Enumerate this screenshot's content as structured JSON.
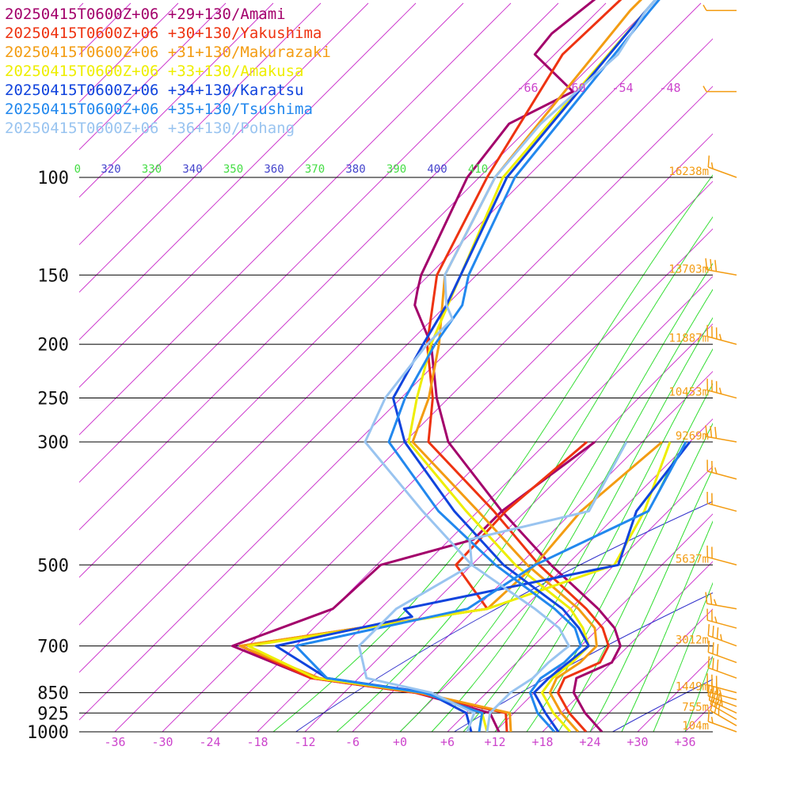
{
  "chart_data": {
    "type": "line",
    "title": "",
    "xlabel": "",
    "ylabel": "",
    "x_scale": "skewed temperature (deg C)",
    "y_scale": "log pressure (hPa)",
    "xlim": [
      -40,
      40
    ],
    "ylim": [
      1000,
      100
    ],
    "grid": true,
    "legend_position": "top-left",
    "pressure_ticks": [
      "100",
      "150",
      "200",
      "250",
      "300",
      "500",
      "700",
      "850",
      "925",
      "1000"
    ],
    "temperature_ticks": [
      "-36",
      "-30",
      "-24",
      "-18",
      "-12",
      "-6",
      "+0",
      "+6",
      "+12",
      "+18",
      "+24",
      "+30",
      "+36"
    ],
    "upper_isotherm_labels": [
      "-66",
      "-60",
      "-54",
      "-48"
    ],
    "theta_labels": [
      {
        "text": "0",
        "color": "#44dd44"
      },
      {
        "text": "320",
        "color": "#4444cc"
      },
      {
        "text": "330",
        "color": "#44dd44"
      },
      {
        "text": "340",
        "color": "#4444cc"
      },
      {
        "text": "350",
        "color": "#44dd44"
      },
      {
        "text": "360",
        "color": "#4444cc"
      },
      {
        "text": "370",
        "color": "#44dd44"
      },
      {
        "text": "380",
        "color": "#4444cc"
      },
      {
        "text": "390",
        "color": "#44dd44"
      },
      {
        "text": "400",
        "color": "#4444cc"
      },
      {
        "text": "410",
        "color": "#44dd44"
      }
    ],
    "height_labels": [
      {
        "p": 100,
        "text": "16238m"
      },
      {
        "p": 150,
        "text": "13703m"
      },
      {
        "p": 200,
        "text": "11887m"
      },
      {
        "p": 250,
        "text": "10453m"
      },
      {
        "p": 300,
        "text": "9269m"
      },
      {
        "p": 500,
        "text": "5637m"
      },
      {
        "p": 700,
        "text": "3012m"
      },
      {
        "p": 850,
        "text": "1449m"
      },
      {
        "p": 925,
        "text": "755m"
      },
      {
        "p": 1000,
        "text": "104m"
      }
    ],
    "colors": {
      "isobar": "#000000",
      "isotherm": "#cc33cc",
      "dry_adiabat": "#3333cc",
      "moist_adiabat": "#33dd33",
      "height_label": "#f39c12",
      "wind_barb": "#f39c12"
    },
    "series": [
      {
        "name": "20250415T0600Z+06 +29+130/Amami",
        "color": "#a3006b",
        "temperature": [
          [
            1000,
            25.5
          ],
          [
            925,
            21
          ],
          [
            850,
            17
          ],
          [
            800,
            15.5
          ],
          [
            750,
            18
          ],
          [
            700,
            17
          ],
          [
            650,
            14
          ],
          [
            600,
            9.5
          ],
          [
            500,
            -2
          ],
          [
            400,
            -15
          ],
          [
            300,
            -30.5
          ],
          [
            250,
            -37.5
          ],
          [
            200,
            -45
          ],
          [
            170,
            -52
          ],
          [
            160,
            -53.5
          ],
          [
            150,
            -55
          ],
          [
            100,
            -61.5
          ],
          [
            80,
            -63
          ],
          [
            70,
            -59
          ],
          [
            60,
            -68.5
          ],
          [
            55,
            -69
          ],
          [
            40,
            -66.5
          ],
          [
            20,
            -64
          ]
        ],
        "dewpoint": [
          [
            1000,
            12.5
          ],
          [
            925,
            9
          ],
          [
            850,
            -3
          ],
          [
            800,
            -18
          ],
          [
            700,
            -32
          ],
          [
            600,
            -24
          ],
          [
            500,
            -23.5
          ],
          [
            450,
            -15
          ],
          [
            400,
            -15
          ],
          [
            300,
            -12
          ]
        ]
      },
      {
        "name": "20250415T0600Z+06 +30+130/Yakushima",
        "color": "#ee3311",
        "temperature": [
          [
            1000,
            23.5
          ],
          [
            925,
            19
          ],
          [
            850,
            15
          ],
          [
            800,
            14
          ],
          [
            750,
            16.5
          ],
          [
            700,
            15.5
          ],
          [
            650,
            12.5
          ],
          [
            600,
            8
          ],
          [
            500,
            -3.5
          ],
          [
            400,
            -16
          ],
          [
            300,
            -33
          ],
          [
            250,
            -38
          ],
          [
            200,
            -45.5
          ],
          [
            150,
            -53
          ],
          [
            100,
            -59
          ],
          [
            60,
            -65
          ],
          [
            35,
            -64
          ],
          [
            20,
            -63
          ]
        ],
        "dewpoint": [
          [
            1000,
            13.5
          ],
          [
            925,
            11
          ],
          [
            850,
            -3
          ],
          [
            800,
            -18
          ],
          [
            700,
            -31
          ],
          [
            600,
            -4.5
          ],
          [
            500,
            -14
          ],
          [
            400,
            -14.5
          ],
          [
            300,
            -13
          ]
        ]
      },
      {
        "name": "20250415T0600Z+06 +31+130/Makurazaki",
        "color": "#f39c12",
        "temperature": [
          [
            1000,
            22.5
          ],
          [
            925,
            18
          ],
          [
            850,
            14
          ],
          [
            800,
            13
          ],
          [
            750,
            14
          ],
          [
            700,
            14
          ],
          [
            650,
            11.5
          ],
          [
            600,
            7
          ],
          [
            500,
            -5
          ],
          [
            400,
            -18
          ],
          [
            300,
            -35
          ],
          [
            250,
            -38.5
          ],
          [
            200,
            -44
          ],
          [
            150,
            -52
          ],
          [
            100,
            -58
          ],
          [
            50,
            -62
          ],
          [
            30,
            -62
          ],
          [
            20,
            -63
          ]
        ],
        "dewpoint": [
          [
            1000,
            14
          ],
          [
            925,
            11.5
          ],
          [
            850,
            -2.5
          ],
          [
            800,
            -17
          ],
          [
            700,
            -31
          ],
          [
            600,
            -4.5
          ],
          [
            500,
            -4
          ],
          [
            400,
            -5
          ],
          [
            300,
            -3.5
          ]
        ]
      },
      {
        "name": "20250415T0600Z+06 +33+130/Amakusa",
        "color": "#eeee00",
        "temperature": [
          [
            1000,
            21.5
          ],
          [
            925,
            17
          ],
          [
            850,
            13
          ],
          [
            800,
            12.5
          ],
          [
            750,
            13
          ],
          [
            700,
            13
          ],
          [
            650,
            10
          ],
          [
            600,
            6
          ],
          [
            500,
            -6.5
          ],
          [
            400,
            -19.5
          ],
          [
            300,
            -35.5
          ],
          [
            250,
            -40
          ],
          [
            200,
            -45
          ],
          [
            150,
            -50
          ],
          [
            100,
            -57
          ],
          [
            50,
            -60
          ],
          [
            30,
            -62
          ],
          [
            20,
            -63
          ]
        ],
        "dewpoint": [
          [
            1000,
            11
          ],
          [
            925,
            8
          ],
          [
            850,
            -2
          ],
          [
            800,
            -17.5
          ],
          [
            700,
            -30
          ],
          [
            600,
            -4.5
          ],
          [
            500,
            6
          ],
          [
            400,
            3
          ],
          [
            300,
            -2.5
          ]
        ]
      },
      {
        "name": "20250415T0600Z+06 +34+130/Karatsu",
        "color": "#1144dd",
        "temperature": [
          [
            1000,
            20
          ],
          [
            925,
            16
          ],
          [
            850,
            12
          ],
          [
            800,
            12
          ],
          [
            750,
            12.5
          ],
          [
            700,
            13
          ],
          [
            650,
            9.5
          ],
          [
            600,
            5
          ],
          [
            500,
            -8
          ],
          [
            400,
            -21
          ],
          [
            300,
            -36
          ],
          [
            250,
            -43
          ],
          [
            200,
            -46
          ],
          [
            170,
            -48
          ],
          [
            150,
            -50
          ],
          [
            100,
            -56.5
          ],
          [
            50,
            -60
          ],
          [
            30,
            -62
          ],
          [
            20,
            -63
          ]
        ],
        "dewpoint": [
          [
            1000,
            9
          ],
          [
            925,
            6
          ],
          [
            850,
            -1.5
          ],
          [
            800,
            -16
          ],
          [
            700,
            -26.5
          ],
          [
            620,
            -13
          ],
          [
            600,
            -15
          ],
          [
            500,
            6.5
          ],
          [
            400,
            2
          ],
          [
            300,
            0
          ]
        ]
      },
      {
        "name": "20250415T0600Z+06 +35+130/Tsushima",
        "color": "#2288ee",
        "temperature": [
          [
            1000,
            19.5
          ],
          [
            925,
            15
          ],
          [
            850,
            11.5
          ],
          [
            800,
            11
          ],
          [
            750,
            12
          ],
          [
            700,
            12
          ],
          [
            650,
            9
          ],
          [
            600,
            4
          ],
          [
            500,
            -9
          ],
          [
            400,
            -23
          ],
          [
            300,
            -38
          ],
          [
            250,
            -41.5
          ],
          [
            200,
            -44.5
          ],
          [
            170,
            -46
          ],
          [
            150,
            -49
          ],
          [
            100,
            -55.5
          ],
          [
            50,
            -59.5
          ],
          [
            30,
            -62
          ],
          [
            20,
            -63
          ]
        ],
        "dewpoint": [
          [
            1000,
            10
          ],
          [
            925,
            8
          ],
          [
            850,
            -2
          ],
          [
            800,
            -16
          ],
          [
            700,
            -24
          ],
          [
            600,
            -7
          ],
          [
            500,
            -4
          ],
          [
            400,
            3.5
          ],
          [
            300,
            -0.5
          ]
        ]
      },
      {
        "name": "20250415T0600Z+06 +36+130/Pohang",
        "color": "#99c4f0",
        "temperature": [
          [
            1000,
            11
          ],
          [
            925,
            9
          ],
          [
            850,
            9
          ],
          [
            800,
            10
          ],
          [
            750,
            10
          ],
          [
            700,
            10.5
          ],
          [
            650,
            7
          ],
          [
            600,
            1.5
          ],
          [
            500,
            -12
          ],
          [
            400,
            -25
          ],
          [
            300,
            -41
          ],
          [
            250,
            -44
          ],
          [
            200,
            -45.5
          ],
          [
            180,
            -45.5
          ],
          [
            170,
            -48
          ],
          [
            150,
            -52
          ],
          [
            100,
            -58
          ],
          [
            80,
            -59
          ],
          [
            60,
            -58
          ],
          [
            50,
            -60
          ],
          [
            30,
            -62
          ],
          [
            20,
            -63
          ]
        ],
        "dewpoint": [
          [
            1000,
            8.5
          ],
          [
            925,
            7
          ],
          [
            850,
            -1
          ],
          [
            800,
            -11
          ],
          [
            700,
            -16
          ],
          [
            600,
            -16
          ],
          [
            500,
            -12
          ],
          [
            450,
            -15.5
          ],
          [
            400,
            -4
          ],
          [
            300,
            -8
          ]
        ]
      }
    ],
    "wind_barbs": [
      {
        "p": 1000,
        "speed_kt": 15,
        "direction_deg": 290
      },
      {
        "p": 975,
        "speed_kt": 25,
        "direction_deg": 300
      },
      {
        "p": 950,
        "speed_kt": 30,
        "direction_deg": 300
      },
      {
        "p": 925,
        "speed_kt": 35,
        "direction_deg": 295
      },
      {
        "p": 900,
        "speed_kt": 35,
        "direction_deg": 290
      },
      {
        "p": 875,
        "speed_kt": 35,
        "direction_deg": 285
      },
      {
        "p": 850,
        "speed_kt": 30,
        "direction_deg": 285
      },
      {
        "p": 800,
        "speed_kt": 30,
        "direction_deg": 290
      },
      {
        "p": 750,
        "speed_kt": 30,
        "direction_deg": 290
      },
      {
        "p": 700,
        "speed_kt": 35,
        "direction_deg": 290
      },
      {
        "p": 650,
        "speed_kt": 25,
        "direction_deg": 285
      },
      {
        "p": 600,
        "speed_kt": 25,
        "direction_deg": 280
      },
      {
        "p": 500,
        "speed_kt": 20,
        "direction_deg": 285
      },
      {
        "p": 400,
        "speed_kt": 20,
        "direction_deg": 285
      },
      {
        "p": 350,
        "speed_kt": 25,
        "direction_deg": 285
      },
      {
        "p": 300,
        "speed_kt": 30,
        "direction_deg": 280
      },
      {
        "p": 250,
        "speed_kt": 35,
        "direction_deg": 285
      },
      {
        "p": 200,
        "speed_kt": 35,
        "direction_deg": 285
      },
      {
        "p": 150,
        "speed_kt": 30,
        "direction_deg": 280
      },
      {
        "p": 100,
        "speed_kt": 15,
        "direction_deg": 290
      },
      {
        "p": 70,
        "speed_kt": 5,
        "direction_deg": 270
      },
      {
        "p": 50,
        "speed_kt": 5,
        "direction_deg": 270
      }
    ]
  }
}
